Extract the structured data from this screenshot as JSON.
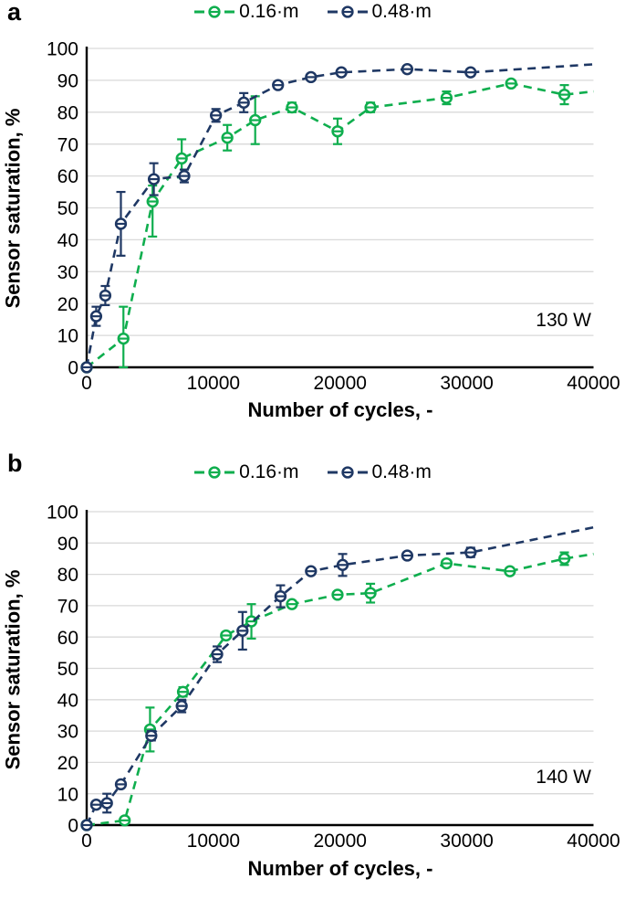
{
  "figure_background": "#ffffff",
  "colors": {
    "series_016m": "#0fae4e",
    "series_048m": "#1f3864",
    "grid": "#d9d9d9",
    "axis": "#000000",
    "text": "#000000"
  },
  "chart_data": [
    {
      "type": "line",
      "panel_label": "a",
      "annotation": "130 W",
      "xlabel": "Number of cycles, -",
      "ylabel": "Sensor saturation, %",
      "xlim": [
        0,
        40000
      ],
      "ylim": [
        0,
        100
      ],
      "xtick_step": 10000,
      "ytick_step": 10,
      "grid": "horizontal",
      "legend_position": "top",
      "line_style": "dashed",
      "marker_style": "open-circle-with-horizontal-bar",
      "error_bars": true,
      "series": [
        {
          "name": "0.16·m",
          "color_key": "series_016m",
          "points": [
            {
              "x": 0,
              "y": 0
            },
            {
              "x": 2900,
              "y": 9,
              "err": [
                9,
                10
              ]
            },
            {
              "x": 5200,
              "y": 52,
              "err": [
                11,
                5
              ]
            },
            {
              "x": 7500,
              "y": 65.5,
              "err": [
                6,
                6
              ]
            },
            {
              "x": 11100,
              "y": 72,
              "err": [
                4,
                4
              ]
            },
            {
              "x": 13300,
              "y": 77.5,
              "err": [
                7.5,
                7.5
              ]
            },
            {
              "x": 16200,
              "y": 81.5,
              "err": [
                1.5,
                1.5
              ]
            },
            {
              "x": 19800,
              "y": 74,
              "err": [
                4,
                4
              ]
            },
            {
              "x": 22400,
              "y": 81.5,
              "err": [
                1.5,
                1.5
              ]
            },
            {
              "x": 28400,
              "y": 84.5,
              "err": [
                2,
                2
              ]
            },
            {
              "x": 33500,
              "y": 89,
              "err": [
                1,
                1
              ]
            },
            {
              "x": 37700,
              "y": 85.5,
              "err": [
                3,
                3
              ]
            },
            {
              "x": 40000,
              "y": 86.5,
              "marker": false
            }
          ]
        },
        {
          "name": "0.48·m",
          "color_key": "series_048m",
          "points": [
            {
              "x": 0,
              "y": 0
            },
            {
              "x": 750,
              "y": 16,
              "err": [
                3,
                3
              ]
            },
            {
              "x": 1470,
              "y": 22.5,
              "err": [
                3,
                3
              ]
            },
            {
              "x": 2700,
              "y": 45,
              "err": [
                10,
                10
              ]
            },
            {
              "x": 5300,
              "y": 59,
              "err": [
                5,
                5
              ]
            },
            {
              "x": 7700,
              "y": 60,
              "err": [
                2,
                2
              ]
            },
            {
              "x": 10200,
              "y": 79,
              "err": [
                2,
                2
              ]
            },
            {
              "x": 12400,
              "y": 83,
              "err": [
                3,
                3
              ]
            },
            {
              "x": 15100,
              "y": 88.5,
              "err": [
                1,
                1
              ]
            },
            {
              "x": 17700,
              "y": 91,
              "err": [
                1,
                1
              ]
            },
            {
              "x": 20100,
              "y": 92.5,
              "err": [
                1,
                1
              ]
            },
            {
              "x": 25300,
              "y": 93.5,
              "err": [
                1,
                1
              ]
            },
            {
              "x": 30300,
              "y": 92.5,
              "err": [
                1,
                1
              ]
            },
            {
              "x": 40000,
              "y": 95,
              "marker": false
            }
          ]
        }
      ]
    },
    {
      "type": "line",
      "panel_label": "b",
      "annotation": "140 W",
      "xlabel": "Number of cycles, -",
      "ylabel": "Sensor saturation, %",
      "xlim": [
        0,
        40000
      ],
      "ylim": [
        0,
        100
      ],
      "xtick_step": 10000,
      "ytick_step": 10,
      "grid": "horizontal",
      "legend_position": "top",
      "line_style": "dashed",
      "marker_style": "open-circle-with-horizontal-bar",
      "error_bars": true,
      "series": [
        {
          "name": "0.16·m",
          "color_key": "series_016m",
          "points": [
            {
              "x": 0,
              "y": 0
            },
            {
              "x": 3000,
              "y": 1.5
            },
            {
              "x": 5000,
              "y": 30.5,
              "err": [
                7,
                7
              ]
            },
            {
              "x": 7600,
              "y": 42.5,
              "err": [
                1.5,
                1.5
              ]
            },
            {
              "x": 11000,
              "y": 60.5,
              "err": [
                1,
                1
              ]
            },
            {
              "x": 13000,
              "y": 65,
              "err": [
                5.5,
                5.5
              ]
            },
            {
              "x": 16200,
              "y": 70.5,
              "err": [
                1,
                1
              ]
            },
            {
              "x": 19800,
              "y": 73.5,
              "err": [
                1,
                1
              ]
            },
            {
              "x": 22400,
              "y": 74,
              "err": [
                3,
                3
              ]
            },
            {
              "x": 28400,
              "y": 83.5,
              "err": [
                1,
                1
              ]
            },
            {
              "x": 33400,
              "y": 81,
              "err": [
                1,
                1
              ]
            },
            {
              "x": 37700,
              "y": 85,
              "err": [
                2,
                2
              ]
            },
            {
              "x": 40000,
              "y": 86.5,
              "marker": false
            }
          ]
        },
        {
          "name": "0.48·m",
          "color_key": "series_048m",
          "points": [
            {
              "x": 0,
              "y": 0
            },
            {
              "x": 750,
              "y": 6.5,
              "err": [
                1,
                1
              ]
            },
            {
              "x": 1600,
              "y": 7,
              "err": [
                3,
                3
              ]
            },
            {
              "x": 2700,
              "y": 13,
              "err": [
                1,
                1
              ]
            },
            {
              "x": 5100,
              "y": 28.5,
              "err": [
                1.5,
                1.5
              ]
            },
            {
              "x": 7500,
              "y": 38,
              "err": [
                2,
                2
              ]
            },
            {
              "x": 10300,
              "y": 54.5,
              "err": [
                2.5,
                2.5
              ]
            },
            {
              "x": 12300,
              "y": 62,
              "err": [
                6,
                6
              ]
            },
            {
              "x": 15300,
              "y": 73,
              "err": [
                3.5,
                3.5
              ]
            },
            {
              "x": 17700,
              "y": 81,
              "err": [
                1,
                1
              ]
            },
            {
              "x": 20200,
              "y": 83,
              "err": [
                3.5,
                3.5
              ]
            },
            {
              "x": 25300,
              "y": 86,
              "err": [
                1,
                1
              ]
            },
            {
              "x": 30300,
              "y": 87,
              "err": [
                1.5,
                1.5
              ]
            },
            {
              "x": 40000,
              "y": 95,
              "marker": false
            }
          ]
        }
      ]
    }
  ]
}
